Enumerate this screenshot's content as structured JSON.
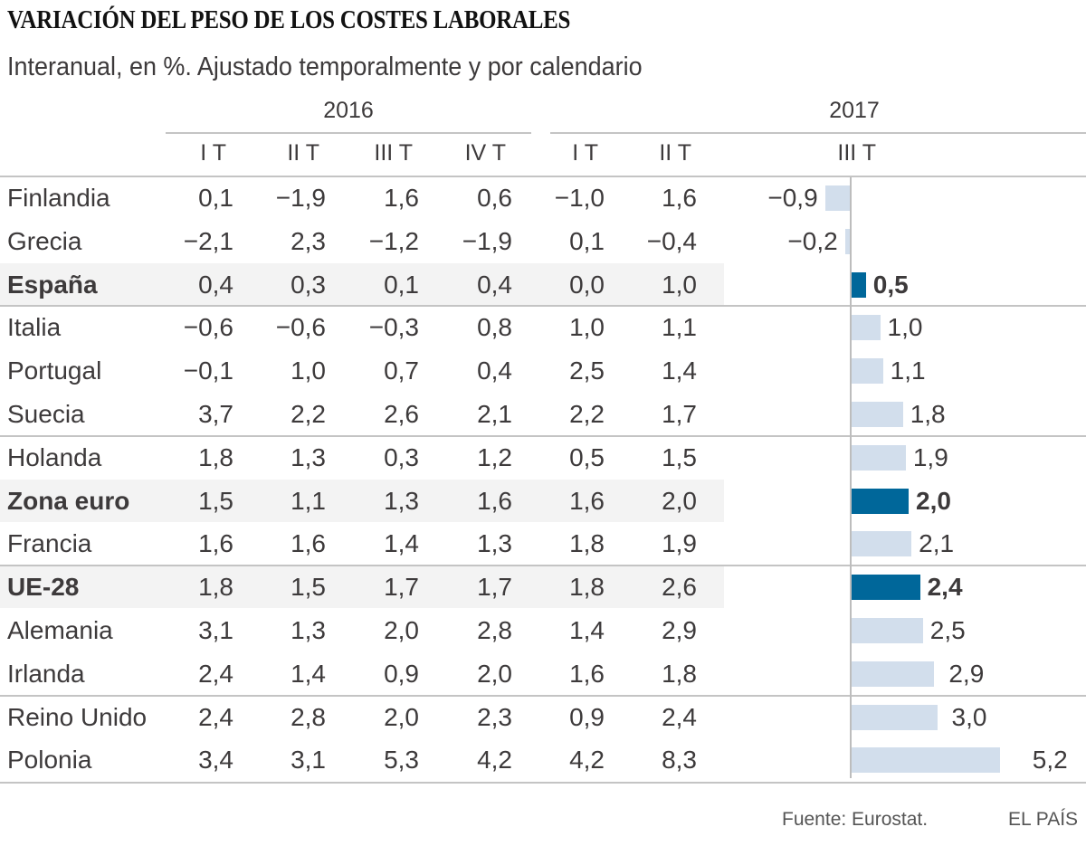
{
  "chart_data": {
    "type": "table",
    "title": "VARIACIÓN DEL PESO DE LOS COSTES LABORALES",
    "subtitle": "Interanual, en %. Ajustado temporalmente y por calendario",
    "years": [
      {
        "label": "2016",
        "quarters": [
          "I T",
          "II T",
          "III T",
          "IV T"
        ]
      },
      {
        "label": "2017",
        "quarters": [
          "I T",
          "II T",
          "III T"
        ]
      }
    ],
    "bar_column": "III T 2017",
    "colors": {
      "bar": "#d2deec",
      "bar_highlight": "#00679a",
      "row_highlight": "#f3f3f3"
    },
    "rows": [
      {
        "name": "Finlandia",
        "highlight": false,
        "values": [
          "0,1",
          "−1,9",
          "1,6",
          "0,6",
          "−1,0",
          "1,6"
        ],
        "bar_value": -0.9,
        "bar_label": "−0,9"
      },
      {
        "name": "Grecia",
        "highlight": false,
        "values": [
          "−2,1",
          "2,3",
          "−1,2",
          "−1,9",
          "0,1",
          "−0,4"
        ],
        "bar_value": -0.2,
        "bar_label": "−0,2"
      },
      {
        "name": "España",
        "highlight": true,
        "values": [
          "0,4",
          "0,3",
          "0,1",
          "0,4",
          "0,0",
          "1,0"
        ],
        "bar_value": 0.5,
        "bar_label": "0,5"
      },
      {
        "name": "Italia",
        "highlight": false,
        "values": [
          "−0,6",
          "−0,6",
          "−0,3",
          "0,8",
          "1,0",
          "1,1"
        ],
        "bar_value": 1.0,
        "bar_label": "1,0"
      },
      {
        "name": "Portugal",
        "highlight": false,
        "values": [
          "−0,1",
          "1,0",
          "0,7",
          "0,4",
          "2,5",
          "1,4"
        ],
        "bar_value": 1.1,
        "bar_label": "1,1"
      },
      {
        "name": "Suecia",
        "highlight": false,
        "values": [
          "3,7",
          "2,2",
          "2,6",
          "2,1",
          "2,2",
          "1,7"
        ],
        "bar_value": 1.8,
        "bar_label": "1,8"
      },
      {
        "name": "Holanda",
        "highlight": false,
        "values": [
          "1,8",
          "1,3",
          "0,3",
          "1,2",
          "0,5",
          "1,5"
        ],
        "bar_value": 1.9,
        "bar_label": "1,9"
      },
      {
        "name": "Zona euro",
        "highlight": true,
        "values": [
          "1,5",
          "1,1",
          "1,3",
          "1,6",
          "1,6",
          "2,0"
        ],
        "bar_value": 2.0,
        "bar_label": "2,0"
      },
      {
        "name": "Francia",
        "highlight": false,
        "values": [
          "1,6",
          "1,6",
          "1,4",
          "1,3",
          "1,8",
          "1,9"
        ],
        "bar_value": 2.1,
        "bar_label": "2,1"
      },
      {
        "name": "UE-28",
        "highlight": true,
        "values": [
          "1,8",
          "1,5",
          "1,7",
          "1,7",
          "1,8",
          "2,6"
        ],
        "bar_value": 2.4,
        "bar_label": "2,4"
      },
      {
        "name": "Alemania",
        "highlight": false,
        "values": [
          "3,1",
          "1,3",
          "2,0",
          "2,8",
          "1,4",
          "2,9"
        ],
        "bar_value": 2.5,
        "bar_label": "2,5"
      },
      {
        "name": "Irlanda",
        "highlight": false,
        "values": [
          "2,4",
          "1,4",
          "0,9",
          "2,0",
          "1,6",
          "1,8"
        ],
        "bar_value": 2.9,
        "bar_label": "2,9"
      },
      {
        "name": "Reino Unido",
        "highlight": false,
        "values": [
          "2,4",
          "2,8",
          "2,0",
          "2,3",
          "0,9",
          "2,4"
        ],
        "bar_value": 3.0,
        "bar_label": "3,0"
      },
      {
        "name": "Polonia",
        "highlight": false,
        "values": [
          "3,4",
          "3,1",
          "5,3",
          "4,2",
          "4,2",
          "8,3"
        ],
        "bar_value": 5.2,
        "bar_label": "5,2"
      }
    ],
    "source": "Fuente: Eurostat.",
    "publisher": "EL PAÍS"
  }
}
